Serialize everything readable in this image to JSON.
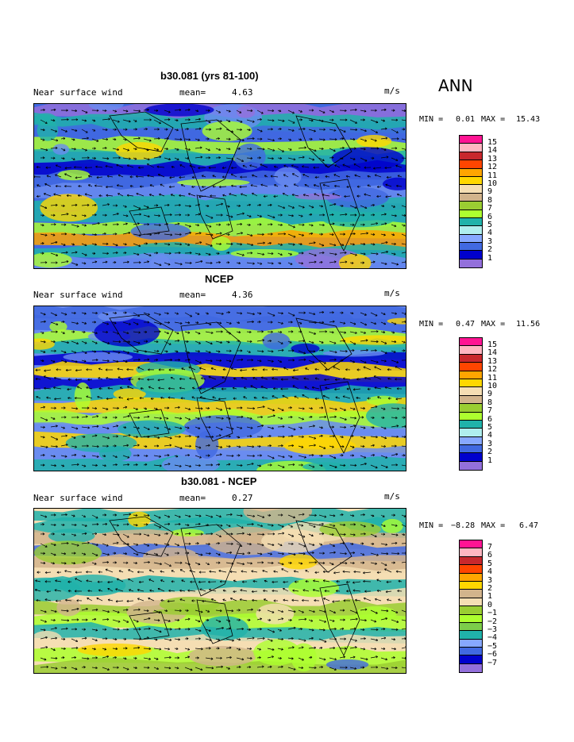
{
  "season": "ANN",
  "panels": [
    {
      "title": "b30.081 (yrs 81-100)",
      "variable": "Near surface wind",
      "mean_label": "mean=",
      "mean": "4.63",
      "units": "m/s",
      "min_label": "MIN =",
      "min": "0.01",
      "max_label": "MAX =",
      "max": "15.43",
      "legend_levels": [
        "15",
        "14",
        "13",
        "12",
        "11",
        "10",
        "9",
        "8",
        "7",
        "6",
        "5",
        "4",
        "3",
        "2",
        "1"
      ],
      "legend_colors": [
        "#ff1493",
        "#ffb6c1",
        "#c8282d",
        "#ff4500",
        "#ffa500",
        "#ffd700",
        "#f5deb3",
        "#d2b48c",
        "#9acd32",
        "#adff2f",
        "#20b2aa",
        "#afeeee",
        "#87a8ff",
        "#4169e1",
        "#0000cd",
        "#9370db"
      ]
    },
    {
      "title": "NCEP",
      "variable": "Near surface wind",
      "mean_label": "mean=",
      "mean": "4.36",
      "units": "m/s",
      "min_label": "MIN =",
      "min": "0.47",
      "max_label": "MAX =",
      "max": "11.56",
      "legend_levels": [
        "15",
        "14",
        "13",
        "12",
        "11",
        "10",
        "9",
        "8",
        "7",
        "6",
        "5",
        "4",
        "3",
        "2",
        "1"
      ],
      "legend_colors": [
        "#ff1493",
        "#ffb6c1",
        "#c8282d",
        "#ff4500",
        "#ffa500",
        "#ffd700",
        "#f5deb3",
        "#d2b48c",
        "#9acd32",
        "#adff2f",
        "#20b2aa",
        "#afeeee",
        "#87a8ff",
        "#4169e1",
        "#0000cd",
        "#9370db"
      ]
    },
    {
      "title": "b30.081 - NCEP",
      "variable": "Near surface wind",
      "mean_label": "mean=",
      "mean": "0.27",
      "units": "m/s",
      "min_label": "MIN =",
      "min": "−8.28",
      "max_label": "MAX =",
      "max": "6.47",
      "legend_levels": [
        "7",
        "6",
        "5",
        "4",
        "3",
        "2",
        "1",
        "0",
        "−1",
        "−2",
        "−3",
        "−4",
        "−5",
        "−6",
        "−7"
      ],
      "legend_colors": [
        "#ff1493",
        "#ffb6c1",
        "#c8282d",
        "#ff4500",
        "#ffa500",
        "#ffd700",
        "#d2b48c",
        "#f5deb3",
        "#9acd32",
        "#adff2f",
        "#7ccd4a",
        "#20b2aa",
        "#87a8ff",
        "#4169e1",
        "#0000cd",
        "#9370db"
      ]
    }
  ],
  "map_colors": {
    "model": [
      "#4169e1",
      "#6a8cf0",
      "#20b2aa",
      "#adff2f",
      "#ffd700",
      "#ffa500",
      "#0000cd",
      "#9370db"
    ],
    "obs": [
      "#6a8cf0",
      "#4169e1",
      "#20b2aa",
      "#adff2f",
      "#0000cd",
      "#ffd700"
    ],
    "diff": [
      "#f5deb3",
      "#d2b48c",
      "#9acd32",
      "#adff2f",
      "#ffd700",
      "#20b2aa",
      "#4169e1"
    ]
  }
}
